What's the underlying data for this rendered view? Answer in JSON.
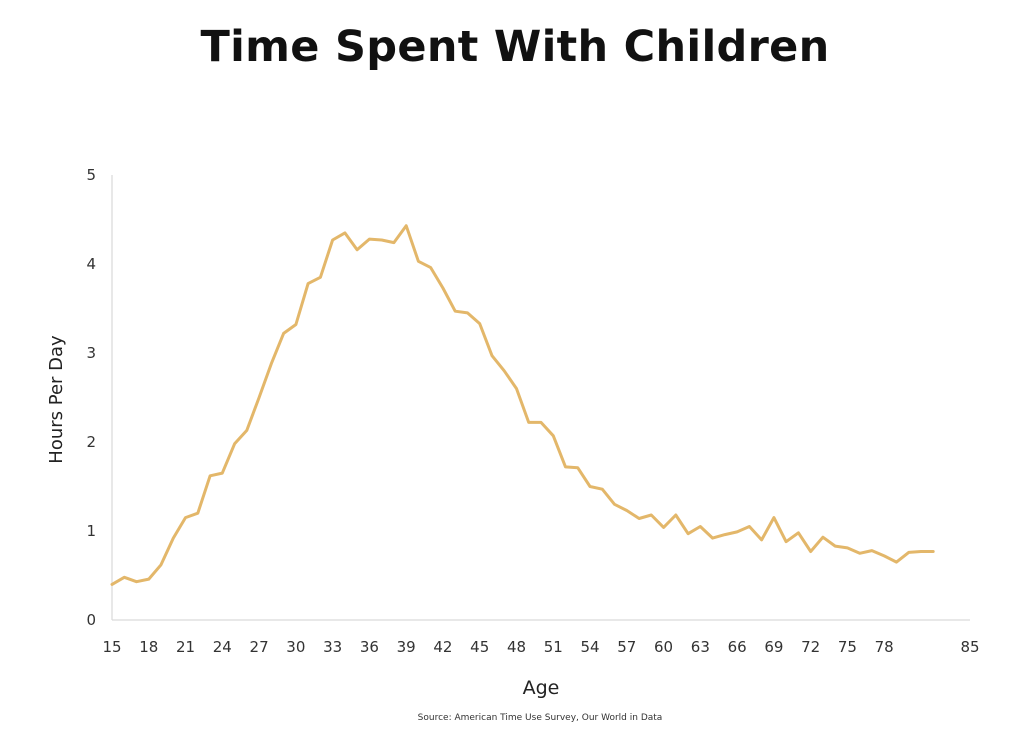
{
  "title": "Time Spent With Children",
  "source": "Source: American Time Use Survey, Our World in Data",
  "colors": {
    "line": "#E3B76A",
    "axis": "#d9d9d9",
    "text": "#333333"
  },
  "chart_data": {
    "type": "line",
    "title": "Time Spent With Children",
    "xlabel": "Age",
    "ylabel": "Hours Per Day",
    "xlim": [
      15,
      85
    ],
    "ylim": [
      0,
      5
    ],
    "xticks": [
      15,
      18,
      21,
      24,
      27,
      30,
      33,
      36,
      39,
      42,
      45,
      48,
      51,
      54,
      57,
      60,
      63,
      66,
      69,
      72,
      75,
      78,
      85
    ],
    "yticks": [
      0,
      1,
      2,
      3,
      4,
      5
    ],
    "grid": false,
    "series": [
      {
        "x": [
          15,
          16,
          17,
          18,
          19,
          20,
          21,
          22,
          23,
          24,
          25,
          26,
          27,
          28,
          29,
          30,
          31,
          32,
          33,
          34,
          35,
          36,
          37,
          38,
          39,
          40,
          41,
          42,
          43,
          44,
          45,
          46,
          47,
          48,
          49,
          50,
          51,
          52,
          53,
          54,
          55,
          56,
          57,
          58,
          59,
          60,
          61,
          62,
          63,
          64,
          65,
          66,
          67,
          68,
          69,
          70,
          71,
          72,
          73,
          74,
          75,
          76,
          77,
          78,
          79,
          80,
          81,
          82
        ],
        "y": [
          0.4,
          0.48,
          0.43,
          0.46,
          0.62,
          0.92,
          1.15,
          1.2,
          1.62,
          1.65,
          1.98,
          2.13,
          2.5,
          2.88,
          3.22,
          3.32,
          3.78,
          3.85,
          4.27,
          4.35,
          4.16,
          4.28,
          4.27,
          4.24,
          4.43,
          4.03,
          3.96,
          3.73,
          3.47,
          3.45,
          3.33,
          2.97,
          2.8,
          2.6,
          2.22,
          2.22,
          2.07,
          1.72,
          1.71,
          1.5,
          1.47,
          1.3,
          1.23,
          1.14,
          1.18,
          1.04,
          1.18,
          0.97,
          1.05,
          0.92,
          0.96,
          0.99,
          1.05,
          0.9,
          1.15,
          0.88,
          0.98,
          0.77,
          0.93,
          0.83,
          0.81,
          0.75,
          0.78,
          0.72,
          0.65,
          0.76,
          0.77,
          0.77
        ]
      }
    ]
  }
}
